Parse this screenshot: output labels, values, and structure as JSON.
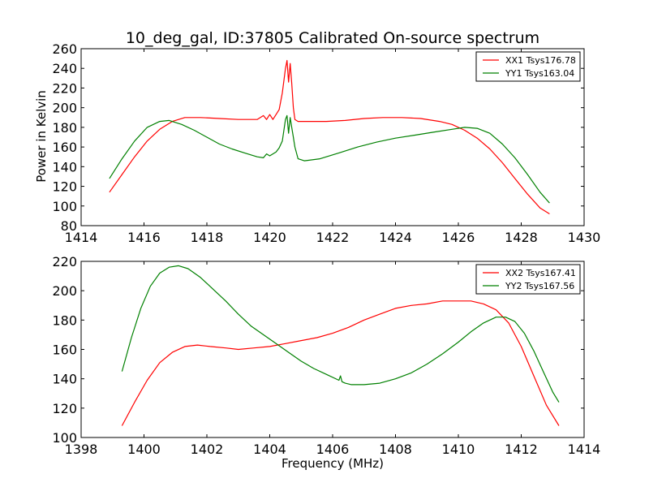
{
  "figure": {
    "title": "10_deg_gal, ID:37805 Calibrated On-source spectrum",
    "ylabel": "Power in Kelvin",
    "xlabel": "Frequency (MHz)"
  },
  "colors": {
    "XX": "#ff0000",
    "YY": "#008000"
  },
  "chart_data": [
    {
      "type": "line",
      "title": "10_deg_gal, ID:37805 Calibrated On-source spectrum",
      "xlabel": "",
      "ylabel": "Power in Kelvin",
      "xlim": [
        1414,
        1430
      ],
      "ylim": [
        80,
        260
      ],
      "xticks": [
        1414,
        1416,
        1418,
        1420,
        1422,
        1424,
        1426,
        1428,
        1430
      ],
      "yticks": [
        80,
        100,
        120,
        140,
        160,
        180,
        200,
        220,
        240,
        260
      ],
      "grid": false,
      "legend_position": "top-right",
      "series": [
        {
          "name": "XX1 Tsys176.78",
          "color": "#ff0000",
          "x": [
            1414.9,
            1415.3,
            1415.7,
            1416.1,
            1416.5,
            1416.9,
            1417.3,
            1417.8,
            1418.4,
            1419.0,
            1419.6,
            1419.8,
            1419.9,
            1420.0,
            1420.1,
            1420.2,
            1420.3,
            1420.4,
            1420.5,
            1420.55,
            1420.6,
            1420.65,
            1420.7,
            1420.75,
            1420.8,
            1420.9,
            1421.2,
            1421.8,
            1422.4,
            1423.0,
            1423.6,
            1424.2,
            1424.8,
            1425.4,
            1425.8,
            1426.2,
            1426.6,
            1427.0,
            1427.4,
            1427.8,
            1428.2,
            1428.6,
            1428.9
          ],
          "y": [
            114,
            132,
            150,
            166,
            178,
            186,
            190,
            190,
            189,
            188,
            188,
            192,
            188,
            193,
            188,
            193,
            198,
            215,
            240,
            248,
            226,
            245,
            225,
            200,
            188,
            186,
            186,
            186,
            187,
            189,
            190,
            190,
            189,
            186,
            183,
            177,
            169,
            158,
            144,
            128,
            112,
            98,
            92
          ]
        },
        {
          "name": "YY1 Tsys163.04",
          "color": "#008000",
          "x": [
            1414.9,
            1415.3,
            1415.7,
            1416.1,
            1416.5,
            1416.8,
            1417.2,
            1417.6,
            1418.0,
            1418.4,
            1418.8,
            1419.2,
            1419.6,
            1419.8,
            1419.9,
            1420.0,
            1420.1,
            1420.2,
            1420.3,
            1420.4,
            1420.5,
            1420.55,
            1420.6,
            1420.65,
            1420.7,
            1420.75,
            1420.8,
            1420.9,
            1421.1,
            1421.6,
            1422.2,
            1422.8,
            1423.4,
            1424.0,
            1424.6,
            1425.2,
            1425.8,
            1426.2,
            1426.6,
            1427.0,
            1427.4,
            1427.8,
            1428.2,
            1428.6,
            1428.9
          ],
          "y": [
            128,
            148,
            166,
            180,
            186,
            187,
            183,
            177,
            170,
            163,
            158,
            154,
            150,
            149,
            153,
            151,
            153,
            155,
            159,
            166,
            188,
            192,
            174,
            190,
            180,
            170,
            160,
            148,
            146,
            148,
            154,
            160,
            165,
            169,
            172,
            175,
            178,
            180,
            179,
            174,
            163,
            149,
            132,
            114,
            103
          ]
        }
      ]
    },
    {
      "type": "line",
      "title": "",
      "xlabel": "Frequency (MHz)",
      "ylabel": "",
      "xlim": [
        1398,
        1414
      ],
      "ylim": [
        100,
        220
      ],
      "xticks": [
        1398,
        1400,
        1402,
        1404,
        1406,
        1408,
        1410,
        1412,
        1414
      ],
      "yticks": [
        100,
        120,
        140,
        160,
        180,
        200,
        220
      ],
      "grid": false,
      "legend_position": "top-right",
      "series": [
        {
          "name": "XX2 Tsys167.41",
          "color": "#ff0000",
          "x": [
            1399.3,
            1399.7,
            1400.1,
            1400.5,
            1400.9,
            1401.3,
            1401.7,
            1402.1,
            1402.6,
            1403.0,
            1403.5,
            1404.0,
            1404.5,
            1405.0,
            1405.5,
            1406.0,
            1406.5,
            1407.0,
            1407.5,
            1408.0,
            1408.5,
            1409.0,
            1409.5,
            1410.0,
            1410.4,
            1410.8,
            1411.2,
            1411.6,
            1412.0,
            1412.4,
            1412.8,
            1413.2
          ],
          "y": [
            108,
            124,
            139,
            151,
            158,
            162,
            163,
            162,
            161,
            160,
            161,
            162,
            164,
            166,
            168,
            171,
            175,
            180,
            184,
            188,
            190,
            191,
            193,
            193,
            193,
            191,
            187,
            178,
            162,
            142,
            122,
            108
          ]
        },
        {
          "name": "YY2 Tsys167.56",
          "color": "#008000",
          "x": [
            1399.3,
            1399.6,
            1399.9,
            1400.2,
            1400.5,
            1400.8,
            1401.1,
            1401.4,
            1401.8,
            1402.2,
            1402.6,
            1403.0,
            1403.4,
            1403.8,
            1404.2,
            1404.6,
            1405.0,
            1405.4,
            1405.8,
            1406.2,
            1406.25,
            1406.3,
            1406.4,
            1406.6,
            1407.0,
            1407.5,
            1408.0,
            1408.5,
            1409.0,
            1409.5,
            1410.0,
            1410.4,
            1410.8,
            1411.2,
            1411.5,
            1411.8,
            1412.1,
            1412.4,
            1412.7,
            1413.0,
            1413.2
          ],
          "y": [
            145,
            168,
            188,
            203,
            212,
            216,
            217,
            215,
            209,
            201,
            193,
            184,
            176,
            170,
            164,
            158,
            152,
            147,
            143,
            139,
            142,
            138,
            137,
            136,
            136,
            137,
            140,
            144,
            150,
            157,
            165,
            172,
            178,
            182,
            182,
            179,
            171,
            159,
            145,
            131,
            124
          ]
        }
      ]
    }
  ]
}
